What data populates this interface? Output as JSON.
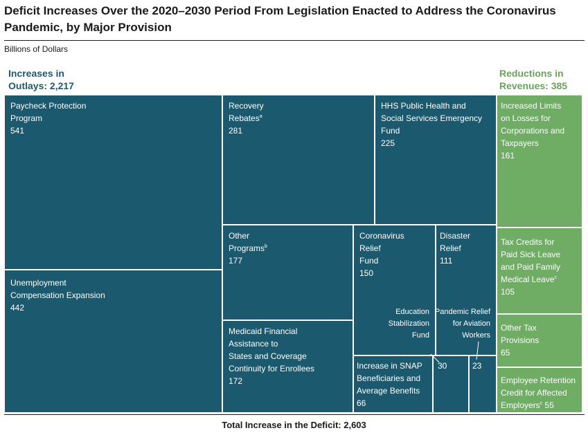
{
  "title": "Deficit Increases Over the 2020–2030 Period From Legislation Enacted to Address the Coronavirus Pandemic, by Major Provision",
  "subtitle": "Billions of Dollars",
  "footer": "Total Increase in the Deficit: 2,603",
  "colors": {
    "outlays": "#1b5a6e",
    "revenues": "#6fac64",
    "outlays_text": "#1f5a6e",
    "revenues_text": "#6aa35e"
  },
  "chart_data": {
    "type": "treemap",
    "groups": [
      {
        "name": "Increases in Outlays: 2,217",
        "total": 2217,
        "items": [
          {
            "label": "Paycheck Protection Program",
            "value": 541
          },
          {
            "label": "Unemployment Compensation Expansion",
            "value": 442
          },
          {
            "label": "Recovery Rebates",
            "note": "a",
            "value": 281
          },
          {
            "label": "HHS Public Health and Social Services Emergency Fund",
            "value": 225
          },
          {
            "label": "Other Programs",
            "note": "b",
            "value": 177
          },
          {
            "label": "Medicaid Financial Assistance to States and Coverage Continuity for Enrollees",
            "value": 172
          },
          {
            "label": "Coronavirus Relief Fund",
            "value": 150
          },
          {
            "label": "Disaster Relief",
            "value": 111
          },
          {
            "label": "Increase in SNAP Beneficiaries and Average Benefits",
            "value": 66
          },
          {
            "label": "Education Stabilization Fund",
            "value": 30
          },
          {
            "label": "Pandemic Relief for Aviation Workers",
            "value": 23
          }
        ]
      },
      {
        "name": "Reductions in Revenues: 385",
        "total": 385,
        "items": [
          {
            "label": "Increased Limits on Losses for Corporations and Taxpayers",
            "value": 161
          },
          {
            "label": "Tax Credits for Paid Sick Leave and Paid Family Medical Leave",
            "note": "c",
            "value": 105
          },
          {
            "label": "Other Tax Provisions",
            "value": 65
          },
          {
            "label": "Employee Retention Credit for Affected Employers",
            "note": "c",
            "value": 55
          }
        ]
      }
    ],
    "total": 2603
  },
  "labels": {
    "outlays_line1": "Increases in",
    "outlays_line2": "Outlays: 2,217",
    "revenues_line1": "Reductions in",
    "revenues_line2": "Revenues: 385",
    "ppp": "Paycheck Protection\nProgram",
    "ppp_val": "541",
    "uce": "Unemployment\nCompensation Expansion",
    "uce_val": "442",
    "rr": "Recovery\nRebates",
    "rr_note": "a",
    "rr_val": "281",
    "hhs": "HHS Public Health and\nSocial Services Emergency\nFund",
    "hhs_val": "225",
    "op": "Other\nPrograms",
    "op_note": "b",
    "op_val": "177",
    "med": "Medicaid Financial\nAssistance to\nStates and Coverage\nContinuity for Enrollees",
    "med_val": "172",
    "crf": "Coronavirus\nRelief\nFund",
    "crf_val": "150",
    "dr": "Disaster\nRelief",
    "dr_val": "111",
    "snap": "Increase in SNAP\nBeneficiaries and\nAverage Benefits",
    "snap_val": "66",
    "esf": "Education\nStabilization\nFund",
    "esf_val": "30",
    "prw": "Pandemic Relief\nfor Aviation\nWorkers",
    "prw_val": "23",
    "ill": "Increased Limits\non Losses for\nCorporations and\nTaxpayers",
    "ill_val": "161",
    "tc": "Tax Credits for\nPaid Sick Leave\nand Paid Family\nMedical Leave",
    "tc_note": "c",
    "tc_val": "105",
    "otp": "Other Tax\nProvisions",
    "otp_val": "65",
    "erc": "Employee Retention\nCredit for Affected\nEmployers",
    "erc_note": "c",
    "erc_val": "55"
  }
}
